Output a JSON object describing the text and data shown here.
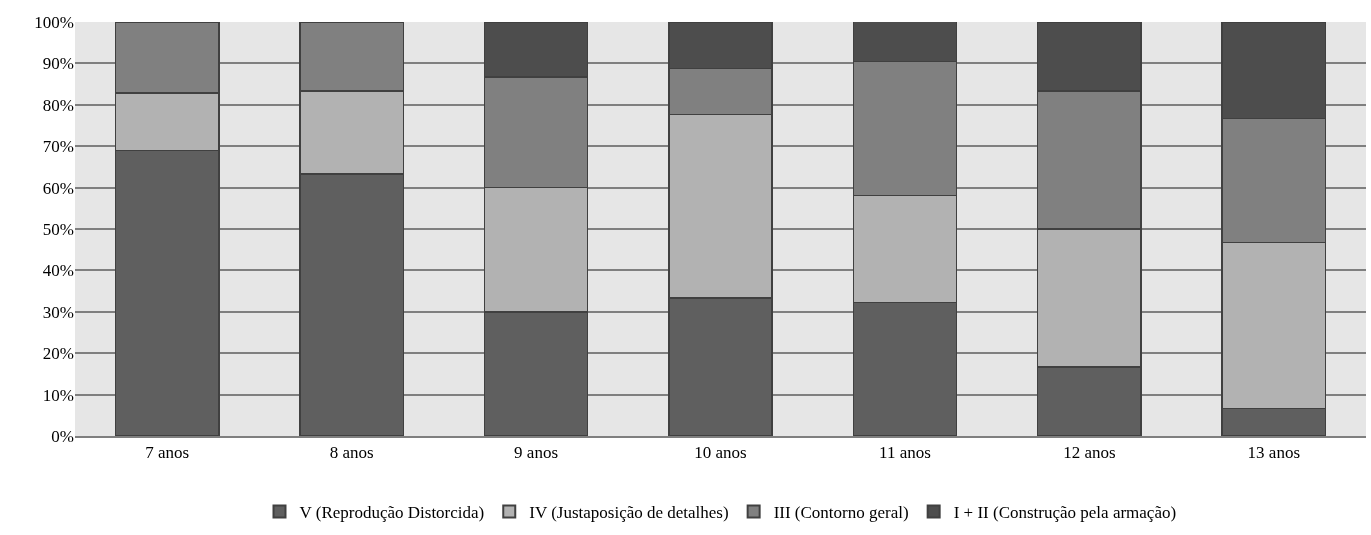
{
  "chart_data": {
    "type": "bar",
    "stacked": true,
    "categories": [
      "7 anos",
      "8 anos",
      "9 anos",
      "10 anos",
      "11 anos",
      "12 anos",
      "13 anos"
    ],
    "series": [
      {
        "name": "V (Reprodução Distorcida)",
        "color": "#5f5f5f",
        "values": [
          69.0,
          63.3,
          30.0,
          33.3,
          32.3,
          16.7,
          6.7
        ]
      },
      {
        "name": "IV (Justaposição de detalhes)",
        "color": "#b2b2b2",
        "values": [
          13.8,
          20.0,
          30.0,
          44.4,
          25.8,
          33.3,
          40.0
        ]
      },
      {
        "name": "III (Contorno geral)",
        "color": "#808080",
        "values": [
          17.2,
          16.7,
          26.7,
          11.1,
          32.3,
          33.3,
          30.0
        ]
      },
      {
        "name": "I + II (Construção pela armação)",
        "color": "#4d4d4d",
        "values": [
          0,
          0,
          13.3,
          11.1,
          9.7,
          16.7,
          23.3
        ]
      }
    ],
    "ylim": [
      0,
      100
    ],
    "yticks": [
      {
        "value": 0,
        "label": "0%"
      },
      {
        "value": 10,
        "label": "10%"
      },
      {
        "value": 20,
        "label": "20%"
      },
      {
        "value": 30,
        "label": "30%"
      },
      {
        "value": 40,
        "label": "40%"
      },
      {
        "value": 50,
        "label": "50%"
      },
      {
        "value": 60,
        "label": "60%"
      },
      {
        "value": 70,
        "label": "70%"
      },
      {
        "value": 80,
        "label": "80%"
      },
      {
        "value": 90,
        "label": "90%"
      },
      {
        "value": 100,
        "label": "100%"
      }
    ],
    "grid": "y",
    "legend": "bottom"
  }
}
